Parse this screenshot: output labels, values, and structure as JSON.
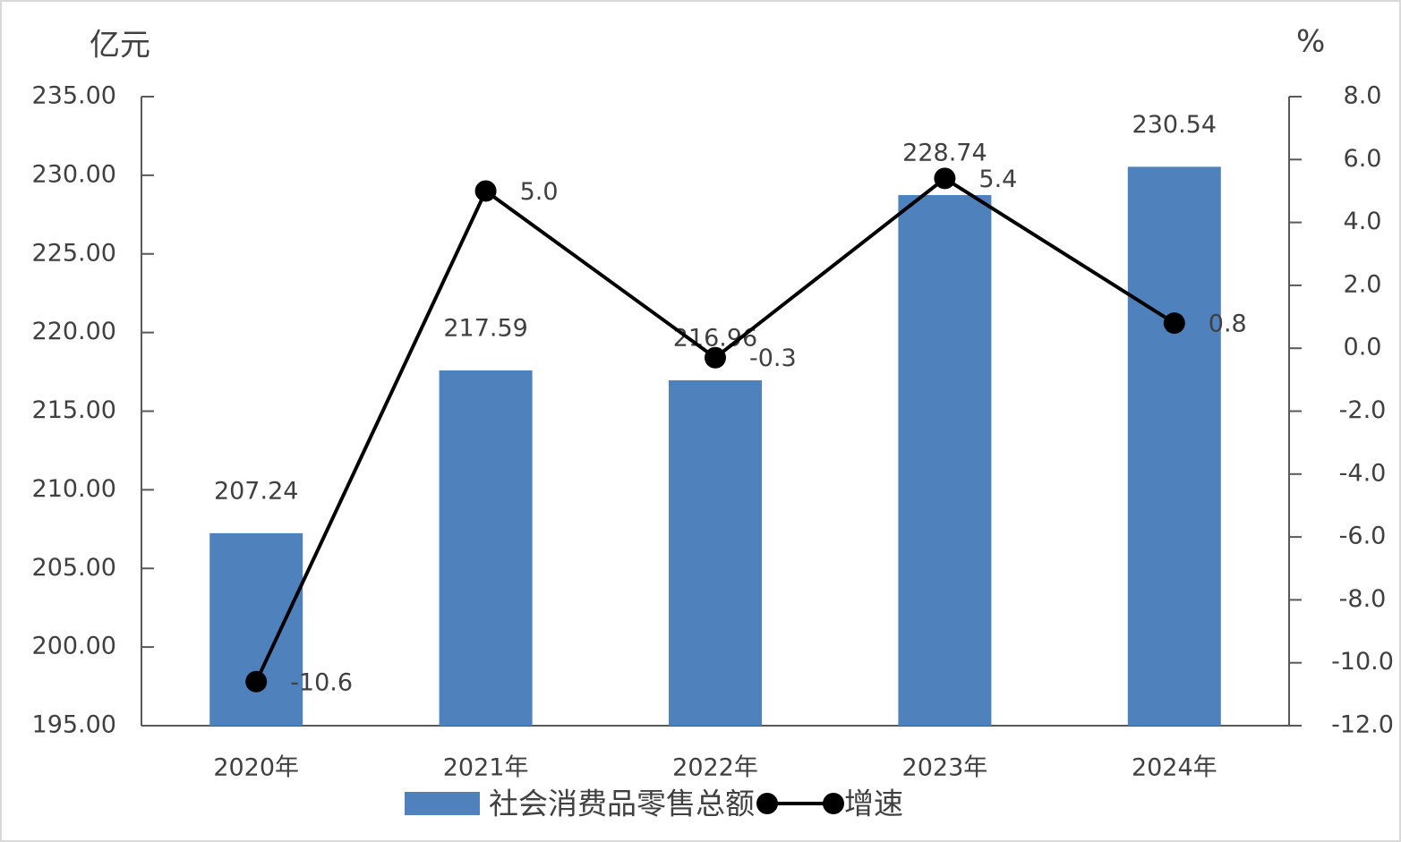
{
  "chart_data": {
    "type": "combo",
    "y_label": "亿元",
    "y2_label": "%",
    "categories": [
      "2020年",
      "2021年",
      "2022年",
      "2023年",
      "2024年"
    ],
    "series": [
      {
        "name": "社会消费品零售总额",
        "type": "bar",
        "color": "#4f81bd",
        "values": [
          207.24,
          217.59,
          216.96,
          228.74,
          230.54
        ]
      },
      {
        "name": "增速",
        "type": "line",
        "axis": "y2",
        "color": "#000000",
        "values": [
          -10.6,
          5.0,
          -0.3,
          5.4,
          0.8
        ],
        "value_labels": [
          "-10.6",
          "5.0",
          "-0.3",
          "5.4",
          "0.8"
        ]
      }
    ],
    "ylim": [
      195,
      235
    ],
    "yticks": [
      {
        "value": 195,
        "label": "195.00"
      },
      {
        "value": 200,
        "label": "200.00"
      },
      {
        "value": 205,
        "label": "205.00"
      },
      {
        "value": 210,
        "label": "210.00"
      },
      {
        "value": 215,
        "label": "215.00"
      },
      {
        "value": 220,
        "label": "220.00"
      },
      {
        "value": 225,
        "label": "225.00"
      },
      {
        "value": 230,
        "label": "230.00"
      },
      {
        "value": 235,
        "label": "235.00"
      }
    ],
    "y2lim": [
      -12,
      8
    ],
    "y2ticks": [
      {
        "value": -12,
        "label": "-12.0"
      },
      {
        "value": -10,
        "label": "-10.0"
      },
      {
        "value": -8,
        "label": "-8.0"
      },
      {
        "value": -6,
        "label": "-6.0"
      },
      {
        "value": -4,
        "label": "-4.0"
      },
      {
        "value": -2,
        "label": "-2.0"
      },
      {
        "value": 0,
        "label": "0.0"
      },
      {
        "value": 2,
        "label": "2.0"
      },
      {
        "value": 4,
        "label": "4.0"
      },
      {
        "value": 6,
        "label": "6.0"
      },
      {
        "value": 8,
        "label": "8.0"
      }
    ],
    "legend": "bottom"
  }
}
